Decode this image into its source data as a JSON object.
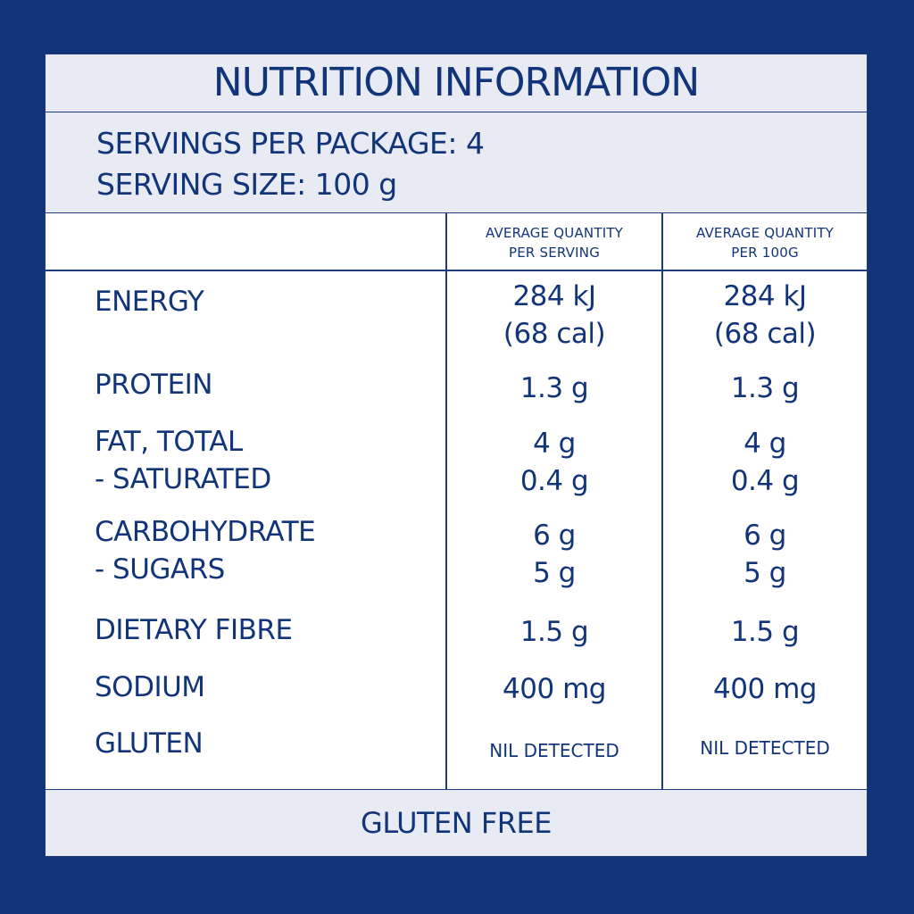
{
  "title": "NUTRITION INFORMATION",
  "servings": {
    "per_package": "SERVINGS PER PACKAGE: 4",
    "serving_size": "SERVING SIZE: 100 g"
  },
  "columns": {
    "per_serving": [
      "AVERAGE QUANTITY",
      "PER SERVING"
    ],
    "per_100g": [
      "AVERAGE QUANTITY",
      "PER 100G"
    ]
  },
  "rows": {
    "energy": {
      "label": "ENERGY",
      "per_serving": [
        "284 kJ",
        "(68 cal)"
      ],
      "per_100g": [
        "284 kJ",
        "(68 cal)"
      ]
    },
    "protein": {
      "label": "PROTEIN",
      "per_serving": "1.3 g",
      "per_100g": "1.3 g"
    },
    "fat": {
      "label": [
        "FAT, TOTAL",
        "- SATURATED"
      ],
      "per_serving": [
        "4 g",
        "0.4 g"
      ],
      "per_100g": [
        "4 g",
        "0.4 g"
      ]
    },
    "carbohydrate": {
      "label": [
        "CARBOHYDRATE",
        "- SUGARS"
      ],
      "per_serving": [
        "6 g",
        "5 g"
      ],
      "per_100g": [
        "6 g",
        "5 g"
      ]
    },
    "fibre": {
      "label": "DIETARY FIBRE",
      "per_serving": "1.5 g",
      "per_100g": "1.5 g"
    },
    "sodium": {
      "label": "SODIUM",
      "per_serving": "400 mg",
      "per_100g": "400 mg"
    },
    "gluten": {
      "label": "GLUTEN",
      "per_serving": "NIL DETECTED",
      "per_100g": "NIL DETECTED"
    }
  },
  "footer": "GLUTEN FREE",
  "colors": {
    "navy": "#12357a",
    "band": "#e8ebf3",
    "panel": "#ffffff"
  }
}
